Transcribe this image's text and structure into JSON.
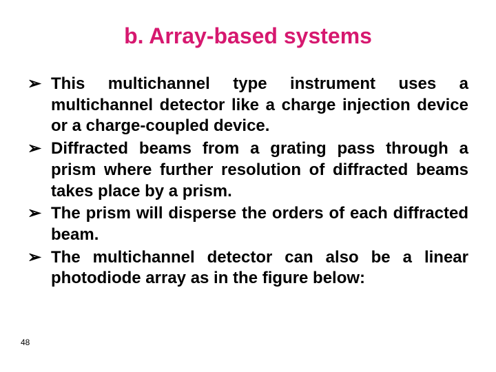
{
  "title": {
    "text": "b. Array-based systems",
    "color": "#d6186f",
    "fontsize": 32
  },
  "body": {
    "color": "#000000",
    "fontsize": 24,
    "lineheight": 1.28,
    "marker": "➢",
    "items": [
      "This multichannel type instrument uses a multichannel detector like a charge injection device or a charge-coupled device.",
      "Diffracted beams from a grating pass through a prism where further resolution of diffracted beams takes place by a prism.",
      " The prism will disperse the orders of each diffracted beam.",
      "The multichannel detector can also be a linear photodiode array as in the figure below:"
    ]
  },
  "pagenum": {
    "text": "48",
    "fontsize": 12,
    "color": "#000000"
  },
  "background_color": "#ffffff"
}
